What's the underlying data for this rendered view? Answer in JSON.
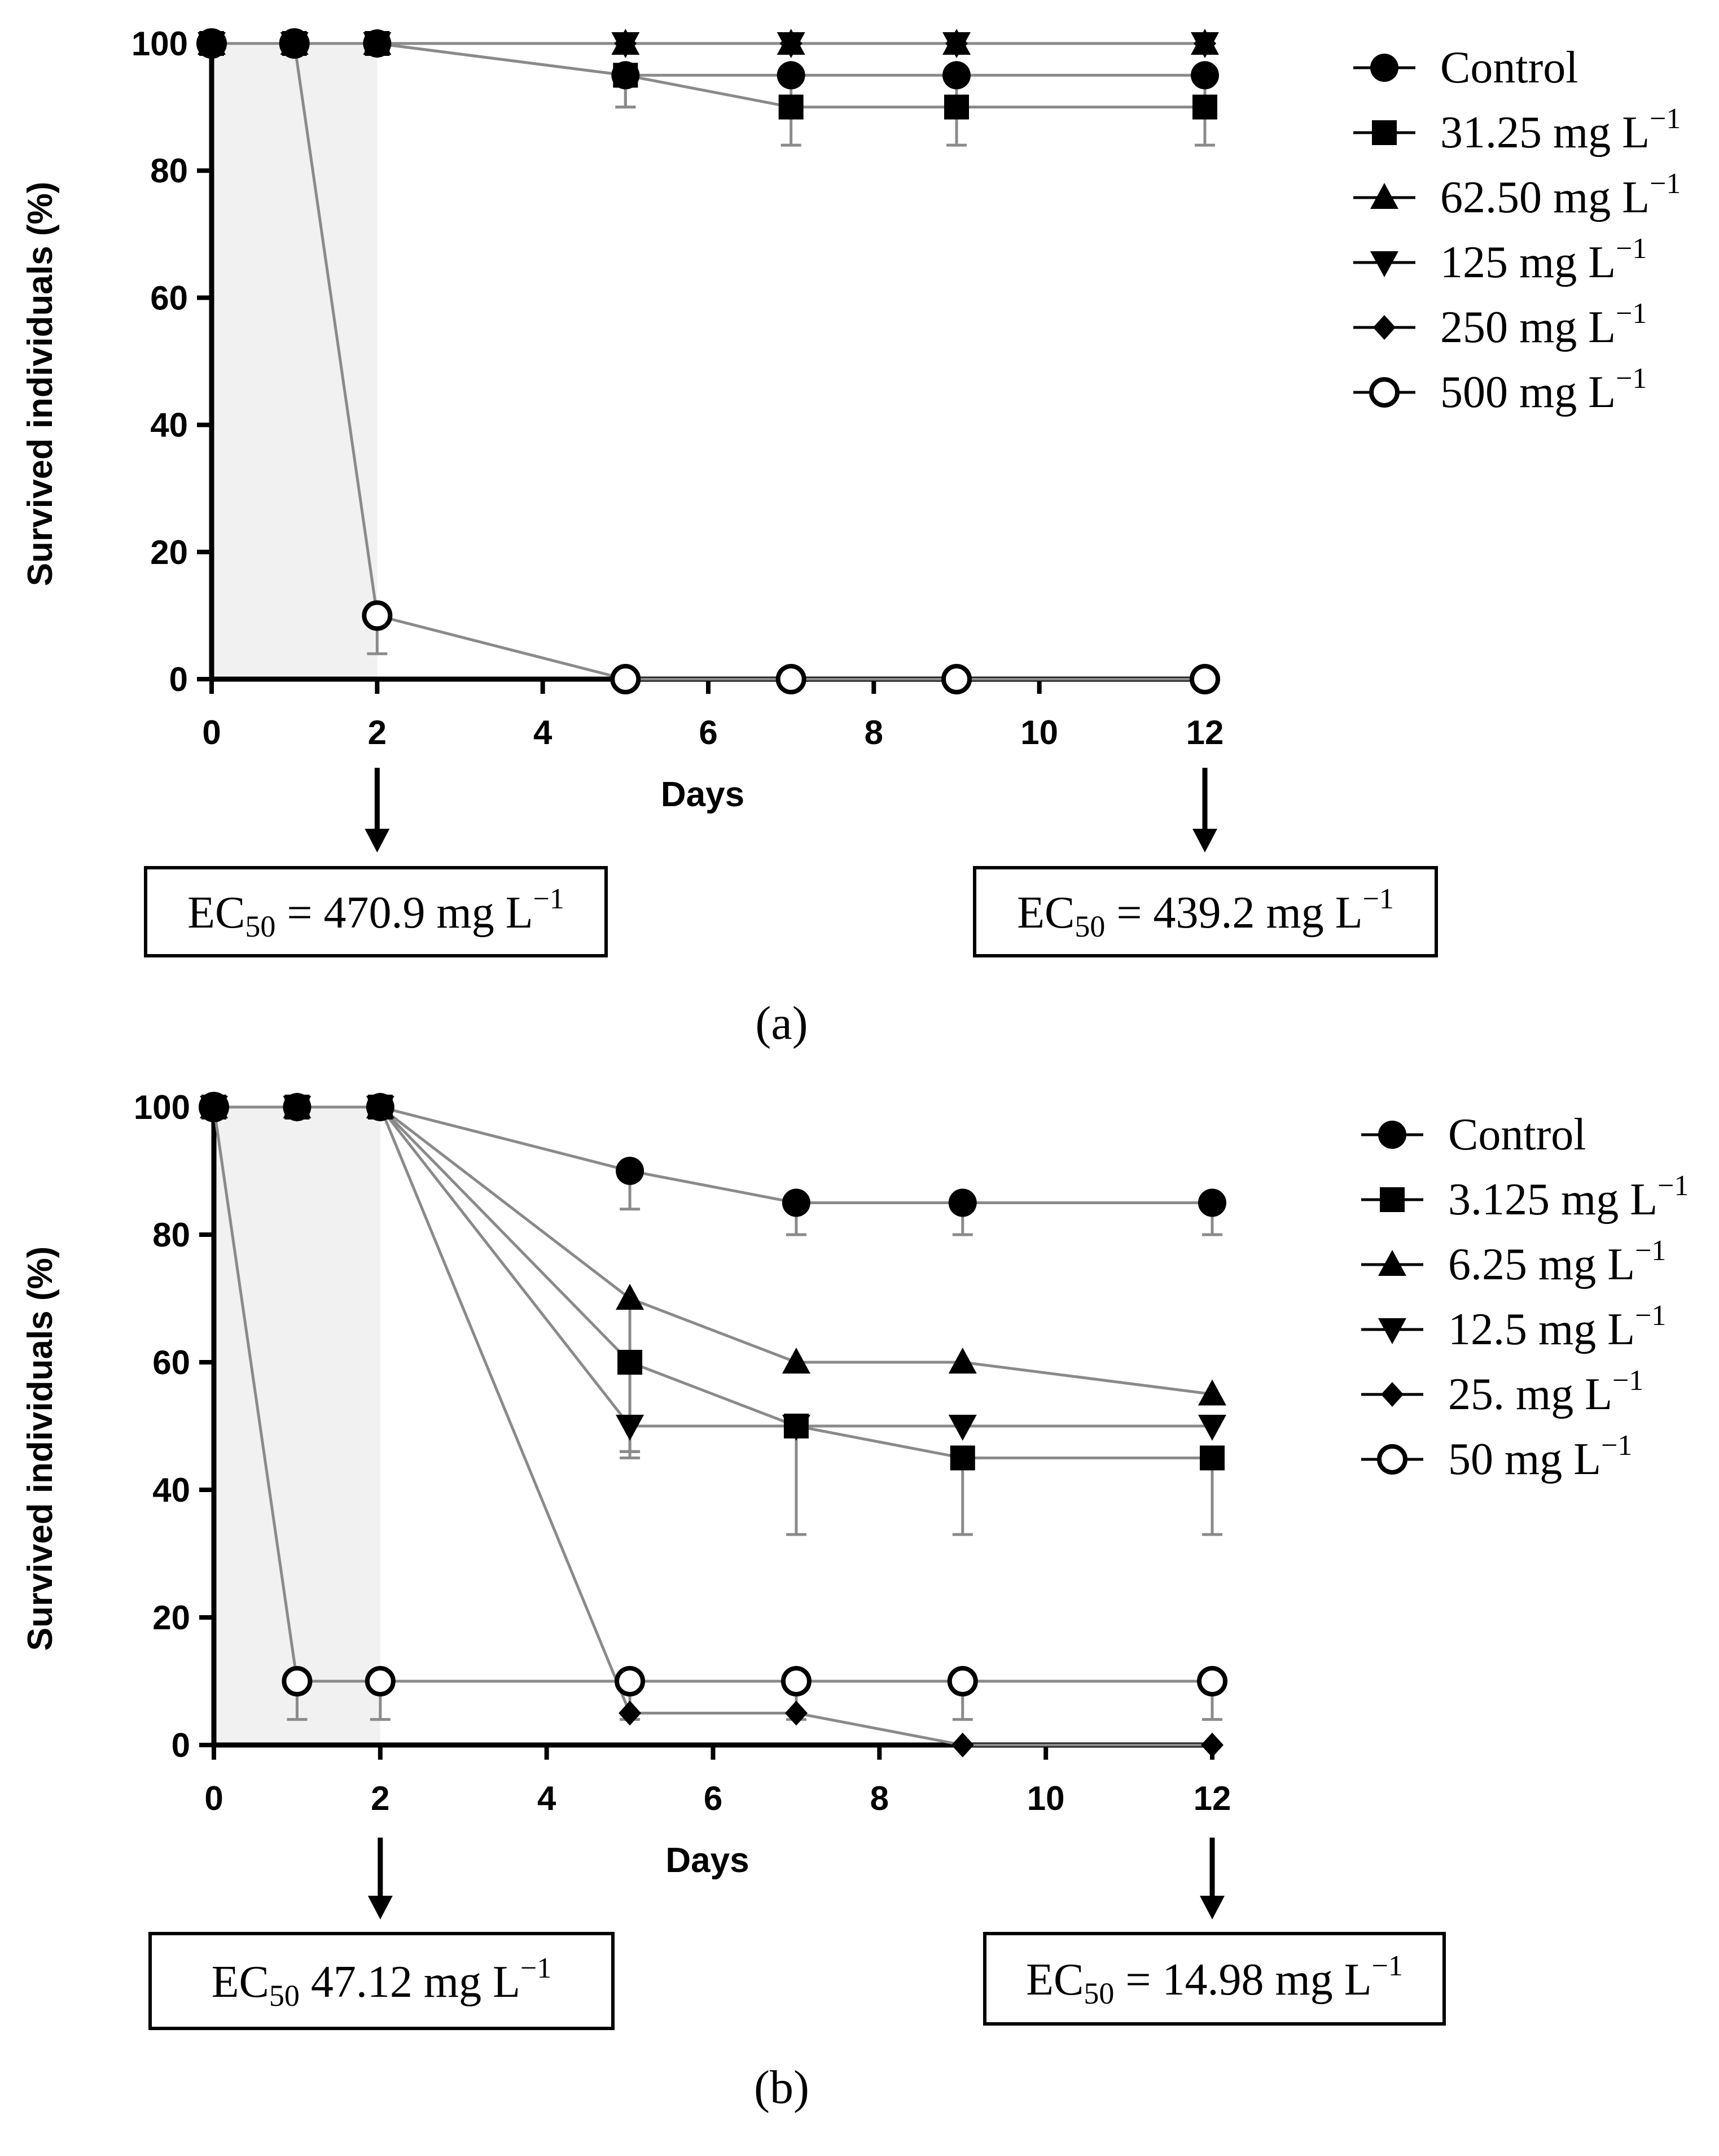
{
  "chart_data": [
    {
      "type": "line",
      "panel_label": "(a)",
      "xlabel": "Days",
      "ylabel": "Survived individuals (%)",
      "xlim": [
        0,
        12
      ],
      "ylim": [
        0,
        100
      ],
      "xticks": [
        "0",
        "2",
        "4",
        "6",
        "8",
        "10",
        "12"
      ],
      "yticks": [
        "0",
        "20",
        "40",
        "60",
        "80",
        "100"
      ],
      "shaded_region_days": [
        0,
        2
      ],
      "x": [
        0,
        1,
        2,
        5,
        7,
        9,
        12
      ],
      "series": [
        {
          "name": "Control",
          "unit": "",
          "marker": "circle",
          "values": [
            100,
            100,
            100,
            95,
            95,
            95,
            95
          ],
          "errors": [
            0,
            0,
            0,
            5,
            5,
            5,
            5
          ]
        },
        {
          "name": "31.25 mg L",
          "unit": "−1",
          "marker": "square",
          "values": [
            100,
            100,
            100,
            95,
            90,
            90,
            90
          ],
          "errors": [
            0,
            0,
            0,
            5,
            6,
            6,
            6
          ]
        },
        {
          "name": "62.50 mg L",
          "unit": "−1",
          "marker": "triangle-up",
          "values": [
            100,
            100,
            100,
            100,
            100,
            100,
            100
          ],
          "errors": [
            0,
            0,
            0,
            0,
            0,
            0,
            0
          ]
        },
        {
          "name": "125 mg L",
          "unit": "−1",
          "marker": "triangle-down",
          "values": [
            100,
            100,
            100,
            100,
            100,
            100,
            100
          ],
          "errors": [
            0,
            0,
            0,
            0,
            0,
            0,
            0
          ]
        },
        {
          "name": "250 mg L",
          "unit": "−1",
          "marker": "diamond",
          "values": [
            100,
            100,
            100,
            100,
            100,
            100,
            100
          ],
          "errors": [
            0,
            0,
            0,
            0,
            0,
            0,
            0
          ]
        },
        {
          "name": "500 mg L",
          "unit": "−1",
          "marker": "circle-open",
          "values": [
            100,
            100,
            10,
            0,
            0,
            0,
            0
          ],
          "errors": [
            0,
            0,
            6,
            0,
            0,
            0,
            0
          ]
        }
      ],
      "annotations": [
        {
          "day": 2,
          "prefix": "EC",
          "sub": "50",
          "text": " = 470.9 mg L",
          "sup": "−1"
        },
        {
          "day": 12,
          "prefix": "EC",
          "sub": "50",
          "text": " = 439.2 mg L",
          "sup": "−1"
        }
      ]
    },
    {
      "type": "line",
      "panel_label": "(b)",
      "xlabel": "Days",
      "ylabel": "Survived individuals (%)",
      "xlim": [
        0,
        12
      ],
      "ylim": [
        0,
        100
      ],
      "xticks": [
        "0",
        "2",
        "4",
        "6",
        "8",
        "10",
        "12"
      ],
      "yticks": [
        "0",
        "20",
        "40",
        "60",
        "80",
        "100"
      ],
      "shaded_region_days": [
        0,
        2
      ],
      "x": [
        0,
        1,
        2,
        5,
        7,
        9,
        12
      ],
      "series": [
        {
          "name": "Control",
          "unit": "",
          "marker": "circle",
          "values": [
            100,
            100,
            100,
            90,
            85,
            85,
            85
          ],
          "errors": [
            0,
            0,
            0,
            6,
            5,
            5,
            5
          ]
        },
        {
          "name": "3.125 mg L",
          "unit": "−1",
          "marker": "square",
          "values": [
            100,
            100,
            100,
            60,
            50,
            45,
            45
          ],
          "errors": [
            0,
            0,
            0,
            14,
            17,
            12,
            12
          ]
        },
        {
          "name": "6.25 mg L",
          "unit": "−1",
          "marker": "triangle-up",
          "values": [
            100,
            100,
            100,
            70,
            60,
            60,
            55
          ],
          "errors": [
            0,
            0,
            0,
            24,
            0,
            0,
            0
          ]
        },
        {
          "name": "12.5 mg L",
          "unit": "−1",
          "marker": "triangle-down",
          "values": [
            100,
            100,
            100,
            50,
            50,
            50,
            50
          ],
          "errors": [
            0,
            0,
            0,
            5,
            0,
            0,
            0
          ]
        },
        {
          "name": "25. mg L",
          "unit": "−1",
          "marker": "diamond",
          "values": [
            100,
            100,
            100,
            5,
            5,
            0,
            0
          ],
          "errors": [
            0,
            0,
            0,
            0,
            0,
            0,
            0
          ]
        },
        {
          "name": "50 mg L",
          "unit": "−1",
          "marker": "circle-open",
          "values": [
            100,
            10,
            10,
            10,
            10,
            10,
            10
          ],
          "errors": [
            0,
            6,
            6,
            6,
            6,
            6,
            6
          ]
        }
      ],
      "annotations": [
        {
          "day": 2,
          "prefix": "EC",
          "sub": "50",
          "text": " 47.12 mg L",
          "sup": "−1"
        },
        {
          "day": 12,
          "prefix": "EC",
          "sub": "50",
          "text": " = 14.98 mg L",
          "sup": "−1"
        }
      ]
    }
  ]
}
